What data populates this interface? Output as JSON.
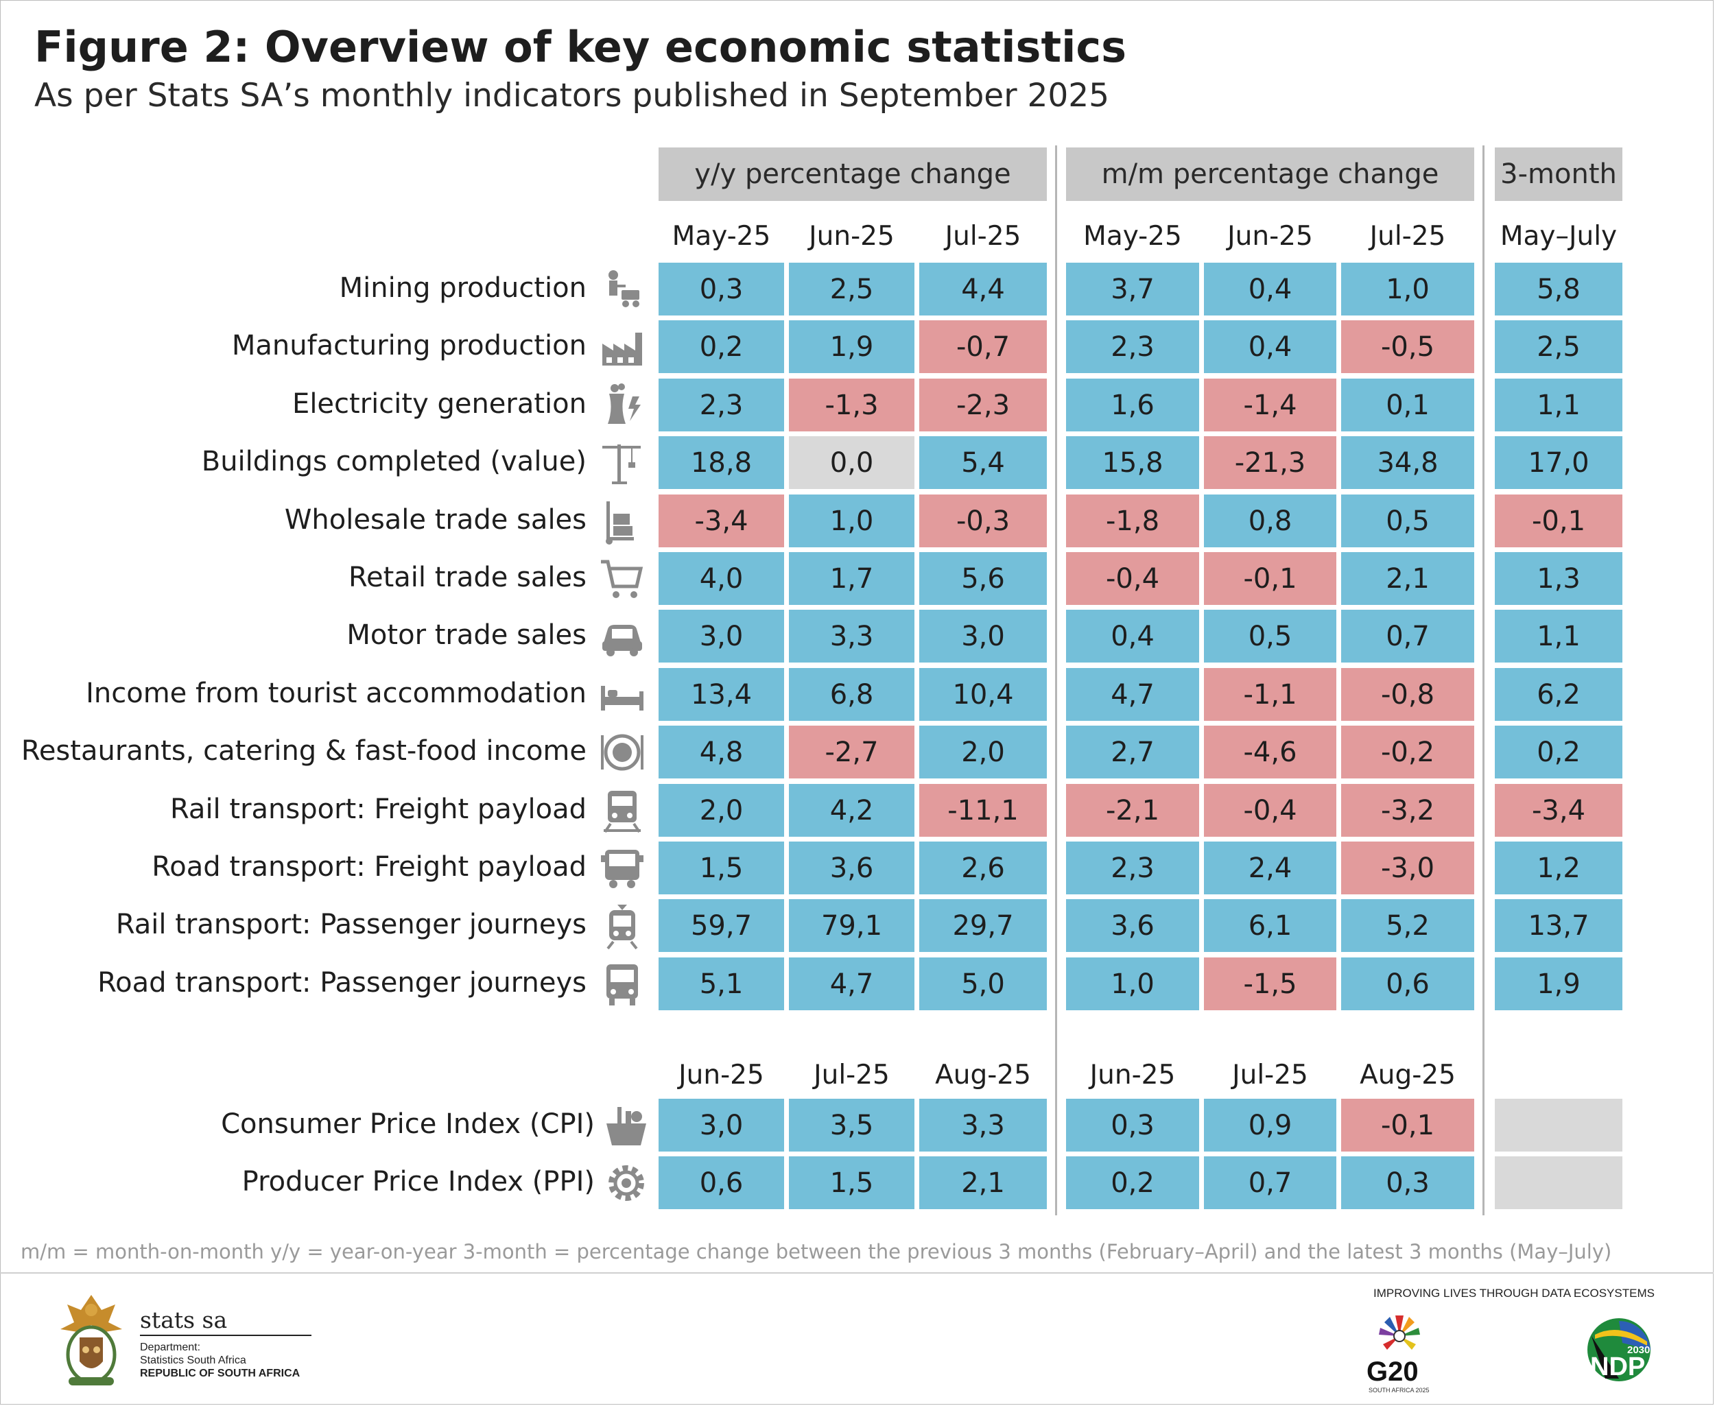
{
  "title": "Figure 2: Overview of key economic statistics",
  "subtitle": "As per Stats SA’s monthly indicators published in September 2025",
  "groups": {
    "yy": "y/y percentage change",
    "mm": "m/m percentage change",
    "three": "3-month"
  },
  "colors": {
    "positive": "#74bfd9",
    "negative": "#e29b9c",
    "zero": "#d9d9d9",
    "header": "#c8c8c8"
  },
  "chart_data": {
    "type": "table",
    "columns_top": [
      "May-25",
      "Jun-25",
      "Jul-25",
      "May-25",
      "Jun-25",
      "Jul-25",
      "May–July"
    ],
    "columns_bottom": [
      "Jun-25",
      "Jul-25",
      "Aug-25",
      "Jun-25",
      "Jul-25",
      "Aug-25"
    ],
    "rows_top": [
      {
        "label": "Mining production",
        "icon": "miner-icon",
        "values": [
          "0,3",
          "2,5",
          "4,4",
          "3,7",
          "0,4",
          "1,0",
          "5,8"
        ]
      },
      {
        "label": "Manufacturing production",
        "icon": "factory-icon",
        "values": [
          "0,2",
          "1,9",
          "-0,7",
          "2,3",
          "0,4",
          "-0,5",
          "2,5"
        ]
      },
      {
        "label": "Electricity generation",
        "icon": "power-station-icon",
        "values": [
          "2,3",
          "-1,3",
          "-2,3",
          "1,6",
          "-1,4",
          "0,1",
          "1,1"
        ]
      },
      {
        "label": "Buildings completed (value)",
        "icon": "crane-icon",
        "values": [
          "18,8",
          "0,0",
          "5,4",
          "15,8",
          "-21,3",
          "34,8",
          "17,0"
        ]
      },
      {
        "label": "Wholesale trade sales",
        "icon": "hand-truck-icon",
        "values": [
          "-3,4",
          "1,0",
          "-0,3",
          "-1,8",
          "0,8",
          "0,5",
          "-0,1"
        ]
      },
      {
        "label": "Retail trade sales",
        "icon": "shopping-cart-icon",
        "values": [
          "4,0",
          "1,7",
          "5,6",
          "-0,4",
          "-0,1",
          "2,1",
          "1,3"
        ]
      },
      {
        "label": "Motor trade sales",
        "icon": "car-icon",
        "values": [
          "3,0",
          "3,3",
          "3,0",
          "0,4",
          "0,5",
          "0,7",
          "1,1"
        ]
      },
      {
        "label": "Income from tourist accommodation",
        "icon": "bed-icon",
        "values": [
          "13,4",
          "6,8",
          "10,4",
          "4,7",
          "-1,1",
          "-0,8",
          "6,2"
        ]
      },
      {
        "label": "Restaurants, catering & fast-food income",
        "icon": "plate-icon",
        "values": [
          "4,8",
          "-2,7",
          "2,0",
          "2,7",
          "-4,6",
          "-0,2",
          "0,2"
        ]
      },
      {
        "label": "Rail transport: Freight payload",
        "icon": "freight-train-icon",
        "values": [
          "2,0",
          "4,2",
          "-11,1",
          "-2,1",
          "-0,4",
          "-3,2",
          "-3,4"
        ]
      },
      {
        "label": "Road transport: Freight payload",
        "icon": "truck-icon",
        "values": [
          "1,5",
          "3,6",
          "2,6",
          "2,3",
          "2,4",
          "-3,0",
          "1,2"
        ]
      },
      {
        "label": "Rail transport: Passenger journeys",
        "icon": "passenger-train-icon",
        "values": [
          "59,7",
          "79,1",
          "29,7",
          "3,6",
          "6,1",
          "5,2",
          "13,7"
        ]
      },
      {
        "label": "Road transport: Passenger journeys",
        "icon": "bus-icon",
        "values": [
          "5,1",
          "4,7",
          "5,0",
          "1,0",
          "-1,5",
          "0,6",
          "1,9"
        ]
      }
    ],
    "rows_bottom": [
      {
        "label": "Consumer Price Index (CPI)",
        "icon": "grocery-basket-icon",
        "values": [
          "3,0",
          "3,5",
          "3,3",
          "0,3",
          "0,9",
          "-0,1"
        ]
      },
      {
        "label": "Producer Price Index (PPI)",
        "icon": "gear-icon",
        "values": [
          "0,6",
          "1,5",
          "2,1",
          "0,2",
          "0,7",
          "0,3"
        ]
      }
    ]
  },
  "footnote": "m/m = month-on-month     y/y = year-on-year     3-month = percentage change between the previous 3 months (February–April) and the latest 3 months (May–July)",
  "footer": {
    "stats_logo_text": "stats sa",
    "dept_line1": "Department:",
    "dept_line2": "Statistics South Africa",
    "dept_line3": "REPUBLIC OF SOUTH AFRICA",
    "tagline": "IMPROVING LIVES THROUGH DATA ECOSYSTEMS",
    "g20_text": "G20",
    "g20_sub": "SOUTH AFRICA 2025",
    "ndp_text": "NDP",
    "ndp_year": "2030"
  }
}
